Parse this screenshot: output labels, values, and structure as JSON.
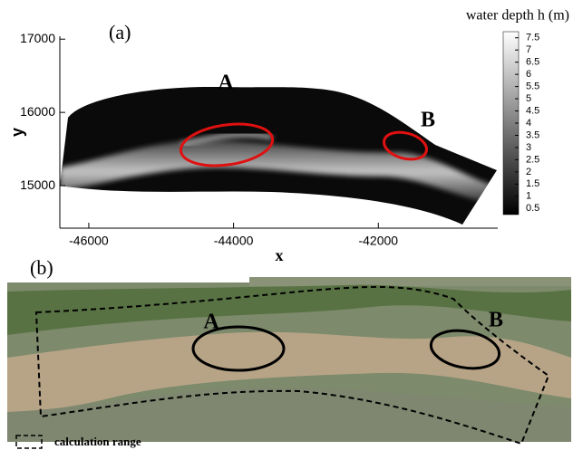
{
  "chart_data": {
    "type": "depth-map",
    "panel_label": "(a)",
    "x_label": "x",
    "y_label": "y",
    "xlim": [
      -46400,
      -40350
    ],
    "xticks": [
      -46000,
      -44000,
      -42000
    ],
    "ylim": [
      14420,
      17040
    ],
    "yticks": [
      15000,
      16000,
      17000
    ],
    "annotations": [
      "A",
      "B"
    ],
    "colorbar_title": "water depth h (m)",
    "colorbar_lim": [
      0.25,
      7.75
    ],
    "colorbar_ticks": [
      0.5,
      1,
      1.5,
      2,
      2.5,
      3,
      3.5,
      4,
      4.5,
      5,
      5.5,
      6,
      6.5,
      7,
      7.5
    ]
  },
  "photo": {
    "panel_label": "(b)",
    "annotations": [
      "A",
      "B"
    ],
    "legend": "calculation range"
  }
}
